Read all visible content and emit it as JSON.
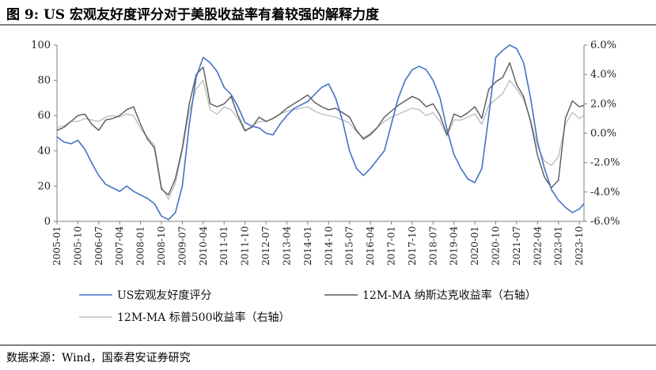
{
  "header": {
    "title": "图 9:  US 宏观友好度评分对于美股收益率有着较强的解释力度"
  },
  "footer": {
    "source": "数据来源：Wind，国泰君安证券研究"
  },
  "colors": {
    "us_score": "#4472C4",
    "nasdaq": "#595959",
    "sp500": "#BFBFBF",
    "axis": "#7F7F7F"
  },
  "chart_data": {
    "type": "line",
    "title": "",
    "xlabel": "",
    "ylabel_left": "",
    "ylabel_right": "",
    "x_start": "2005-01",
    "x_end": "2023-12",
    "x_tick_labels": [
      "2005-01",
      "2005-10",
      "2006-07",
      "2007-04",
      "2008-01",
      "2008-10",
      "2009-07",
      "2010-04",
      "2011-01",
      "2011-10",
      "2012-07",
      "2013-04",
      "2014-01",
      "2014-10",
      "2015-07",
      "2016-04",
      "2017-01",
      "2017-10",
      "2018-07",
      "2019-04",
      "2020-01",
      "2020-10",
      "2021-07",
      "2022-04",
      "2023-01",
      "2023-10"
    ],
    "ylim_left": [
      0,
      100
    ],
    "yticks_left": [
      "0",
      "20",
      "40",
      "60",
      "80",
      "100"
    ],
    "ylim_right": [
      -0.06,
      0.06
    ],
    "yticks_right": [
      "-6.0%",
      "-4.0%",
      "-2.0%",
      "0.0%",
      "2.0%",
      "4.0%",
      "6.0%"
    ],
    "grid": false,
    "legend_position": "bottom",
    "series": [
      {
        "name": "US宏观友好度评分",
        "axis": "left",
        "points": [
          [
            "2005-01",
            48
          ],
          [
            "2005-04",
            45
          ],
          [
            "2005-07",
            44
          ],
          [
            "2005-10",
            46
          ],
          [
            "2006-01",
            41
          ],
          [
            "2006-04",
            33
          ],
          [
            "2006-07",
            26
          ],
          [
            "2006-10",
            21
          ],
          [
            "2007-01",
            19
          ],
          [
            "2007-04",
            17
          ],
          [
            "2007-07",
            20
          ],
          [
            "2007-10",
            17
          ],
          [
            "2008-01",
            15
          ],
          [
            "2008-04",
            13
          ],
          [
            "2008-07",
            10
          ],
          [
            "2008-10",
            3
          ],
          [
            "2009-01",
            1
          ],
          [
            "2009-04",
            5
          ],
          [
            "2009-07",
            20
          ],
          [
            "2009-10",
            55
          ],
          [
            "2010-01",
            82
          ],
          [
            "2010-04",
            93
          ],
          [
            "2010-07",
            90
          ],
          [
            "2010-10",
            85
          ],
          [
            "2011-01",
            76
          ],
          [
            "2011-04",
            72
          ],
          [
            "2011-07",
            65
          ],
          [
            "2011-10",
            56
          ],
          [
            "2012-01",
            54
          ],
          [
            "2012-04",
            53
          ],
          [
            "2012-07",
            50
          ],
          [
            "2012-10",
            49
          ],
          [
            "2013-01",
            55
          ],
          [
            "2013-04",
            60
          ],
          [
            "2013-07",
            64
          ],
          [
            "2013-10",
            66
          ],
          [
            "2014-01",
            68
          ],
          [
            "2014-04",
            72
          ],
          [
            "2014-07",
            76
          ],
          [
            "2014-10",
            78
          ],
          [
            "2015-01",
            70
          ],
          [
            "2015-04",
            57
          ],
          [
            "2015-07",
            40
          ],
          [
            "2015-10",
            30
          ],
          [
            "2016-01",
            26
          ],
          [
            "2016-04",
            30
          ],
          [
            "2016-07",
            35
          ],
          [
            "2016-10",
            40
          ],
          [
            "2017-01",
            55
          ],
          [
            "2017-04",
            70
          ],
          [
            "2017-07",
            80
          ],
          [
            "2017-10",
            86
          ],
          [
            "2018-01",
            88
          ],
          [
            "2018-04",
            86
          ],
          [
            "2018-07",
            80
          ],
          [
            "2018-10",
            70
          ],
          [
            "2019-01",
            52
          ],
          [
            "2019-04",
            38
          ],
          [
            "2019-07",
            30
          ],
          [
            "2019-10",
            24
          ],
          [
            "2020-01",
            22
          ],
          [
            "2020-04",
            30
          ],
          [
            "2020-07",
            60
          ],
          [
            "2020-10",
            93
          ],
          [
            "2021-01",
            97
          ],
          [
            "2021-04",
            100
          ],
          [
            "2021-07",
            98
          ],
          [
            "2021-10",
            90
          ],
          [
            "2022-01",
            70
          ],
          [
            "2022-04",
            45
          ],
          [
            "2022-07",
            30
          ],
          [
            "2022-10",
            18
          ],
          [
            "2023-01",
            12
          ],
          [
            "2023-04",
            8
          ],
          [
            "2023-07",
            5
          ],
          [
            "2023-10",
            7
          ],
          [
            "2023-12",
            10
          ]
        ]
      },
      {
        "name": "12M-MA 纳斯达克收益率（右轴）",
        "axis": "right",
        "points": [
          [
            "2005-01",
            0.002
          ],
          [
            "2005-04",
            0.004
          ],
          [
            "2005-07",
            0.008
          ],
          [
            "2005-10",
            0.012
          ],
          [
            "2006-01",
            0.013
          ],
          [
            "2006-04",
            0.006
          ],
          [
            "2006-07",
            0.002
          ],
          [
            "2006-10",
            0.009
          ],
          [
            "2007-01",
            0.01
          ],
          [
            "2007-04",
            0.012
          ],
          [
            "2007-07",
            0.016
          ],
          [
            "2007-10",
            0.018
          ],
          [
            "2008-01",
            0.006
          ],
          [
            "2008-04",
            -0.004
          ],
          [
            "2008-07",
            -0.01
          ],
          [
            "2008-10",
            -0.038
          ],
          [
            "2009-01",
            -0.042
          ],
          [
            "2009-04",
            -0.031
          ],
          [
            "2009-07",
            -0.01
          ],
          [
            "2009-10",
            0.02
          ],
          [
            "2010-01",
            0.04
          ],
          [
            "2010-04",
            0.045
          ],
          [
            "2010-07",
            0.02
          ],
          [
            "2010-10",
            0.018
          ],
          [
            "2011-01",
            0.02
          ],
          [
            "2011-04",
            0.025
          ],
          [
            "2011-07",
            0.012
          ],
          [
            "2011-10",
            0.002
          ],
          [
            "2012-01",
            0.004
          ],
          [
            "2012-04",
            0.011
          ],
          [
            "2012-07",
            0.008
          ],
          [
            "2012-10",
            0.01
          ],
          [
            "2013-01",
            0.013
          ],
          [
            "2013-04",
            0.017
          ],
          [
            "2013-07",
            0.02
          ],
          [
            "2013-10",
            0.023
          ],
          [
            "2014-01",
            0.026
          ],
          [
            "2014-04",
            0.021
          ],
          [
            "2014-07",
            0.018
          ],
          [
            "2014-10",
            0.016
          ],
          [
            "2015-01",
            0.017
          ],
          [
            "2015-04",
            0.014
          ],
          [
            "2015-07",
            0.011
          ],
          [
            "2015-10",
            0.002
          ],
          [
            "2016-01",
            -0.004
          ],
          [
            "2016-04",
            -0.001
          ],
          [
            "2016-07",
            0.004
          ],
          [
            "2016-10",
            0.011
          ],
          [
            "2017-01",
            0.015
          ],
          [
            "2017-04",
            0.019
          ],
          [
            "2017-07",
            0.022
          ],
          [
            "2017-10",
            0.025
          ],
          [
            "2018-01",
            0.023
          ],
          [
            "2018-04",
            0.018
          ],
          [
            "2018-07",
            0.02
          ],
          [
            "2018-10",
            0.012
          ],
          [
            "2019-01",
            -0.001
          ],
          [
            "2019-04",
            0.013
          ],
          [
            "2019-07",
            0.011
          ],
          [
            "2019-10",
            0.014
          ],
          [
            "2020-01",
            0.018
          ],
          [
            "2020-04",
            0.01
          ],
          [
            "2020-07",
            0.03
          ],
          [
            "2020-10",
            0.035
          ],
          [
            "2021-01",
            0.038
          ],
          [
            "2021-04",
            0.048
          ],
          [
            "2021-07",
            0.033
          ],
          [
            "2021-10",
            0.025
          ],
          [
            "2022-01",
            0.008
          ],
          [
            "2022-04",
            -0.015
          ],
          [
            "2022-07",
            -0.03
          ],
          [
            "2022-10",
            -0.037
          ],
          [
            "2023-01",
            -0.032
          ],
          [
            "2023-04",
            0.01
          ],
          [
            "2023-07",
            0.022
          ],
          [
            "2023-10",
            0.018
          ],
          [
            "2023-12",
            0.019
          ]
        ]
      },
      {
        "name": "12M-MA 标普500收益率（右轴）",
        "axis": "right",
        "points": [
          [
            "2005-01",
            0.004
          ],
          [
            "2005-04",
            0.005
          ],
          [
            "2005-07",
            0.008
          ],
          [
            "2005-10",
            0.008
          ],
          [
            "2006-01",
            0.01
          ],
          [
            "2006-04",
            0.009
          ],
          [
            "2006-07",
            0.008
          ],
          [
            "2006-10",
            0.011
          ],
          [
            "2007-01",
            0.012
          ],
          [
            "2007-04",
            0.011
          ],
          [
            "2007-07",
            0.013
          ],
          [
            "2007-10",
            0.012
          ],
          [
            "2008-01",
            0.003
          ],
          [
            "2008-04",
            -0.003
          ],
          [
            "2008-07",
            -0.008
          ],
          [
            "2008-10",
            -0.036
          ],
          [
            "2009-01",
            -0.045
          ],
          [
            "2009-04",
            -0.034
          ],
          [
            "2009-07",
            -0.012
          ],
          [
            "2009-10",
            0.015
          ],
          [
            "2010-01",
            0.03
          ],
          [
            "2010-04",
            0.036
          ],
          [
            "2010-07",
            0.016
          ],
          [
            "2010-10",
            0.013
          ],
          [
            "2011-01",
            0.018
          ],
          [
            "2011-04",
            0.016
          ],
          [
            "2011-07",
            0.01
          ],
          [
            "2011-10",
            0.001
          ],
          [
            "2012-01",
            0.005
          ],
          [
            "2012-04",
            0.008
          ],
          [
            "2012-07",
            0.008
          ],
          [
            "2012-10",
            0.01
          ],
          [
            "2013-01",
            0.013
          ],
          [
            "2013-04",
            0.015
          ],
          [
            "2013-07",
            0.016
          ],
          [
            "2013-10",
            0.017
          ],
          [
            "2014-01",
            0.018
          ],
          [
            "2014-04",
            0.015
          ],
          [
            "2014-07",
            0.013
          ],
          [
            "2014-10",
            0.012
          ],
          [
            "2015-01",
            0.011
          ],
          [
            "2015-04",
            0.009
          ],
          [
            "2015-07",
            0.007
          ],
          [
            "2015-10",
            0.001
          ],
          [
            "2016-01",
            -0.003
          ],
          [
            "2016-04",
            0.0
          ],
          [
            "2016-07",
            0.004
          ],
          [
            "2016-10",
            0.008
          ],
          [
            "2017-01",
            0.011
          ],
          [
            "2017-04",
            0.013
          ],
          [
            "2017-07",
            0.015
          ],
          [
            "2017-10",
            0.017
          ],
          [
            "2018-01",
            0.016
          ],
          [
            "2018-04",
            0.012
          ],
          [
            "2018-07",
            0.014
          ],
          [
            "2018-10",
            0.008
          ],
          [
            "2019-01",
            -0.002
          ],
          [
            "2019-04",
            0.009
          ],
          [
            "2019-07",
            0.009
          ],
          [
            "2019-10",
            0.011
          ],
          [
            "2020-01",
            0.013
          ],
          [
            "2020-04",
            0.006
          ],
          [
            "2020-07",
            0.019
          ],
          [
            "2020-10",
            0.023
          ],
          [
            "2021-01",
            0.027
          ],
          [
            "2021-04",
            0.036
          ],
          [
            "2021-07",
            0.03
          ],
          [
            "2021-10",
            0.023
          ],
          [
            "2022-01",
            0.009
          ],
          [
            "2022-04",
            -0.009
          ],
          [
            "2022-07",
            -0.019
          ],
          [
            "2022-10",
            -0.022
          ],
          [
            "2023-01",
            -0.016
          ],
          [
            "2023-04",
            0.006
          ],
          [
            "2023-07",
            0.014
          ],
          [
            "2023-10",
            0.01
          ],
          [
            "2023-12",
            0.012
          ]
        ]
      }
    ]
  }
}
